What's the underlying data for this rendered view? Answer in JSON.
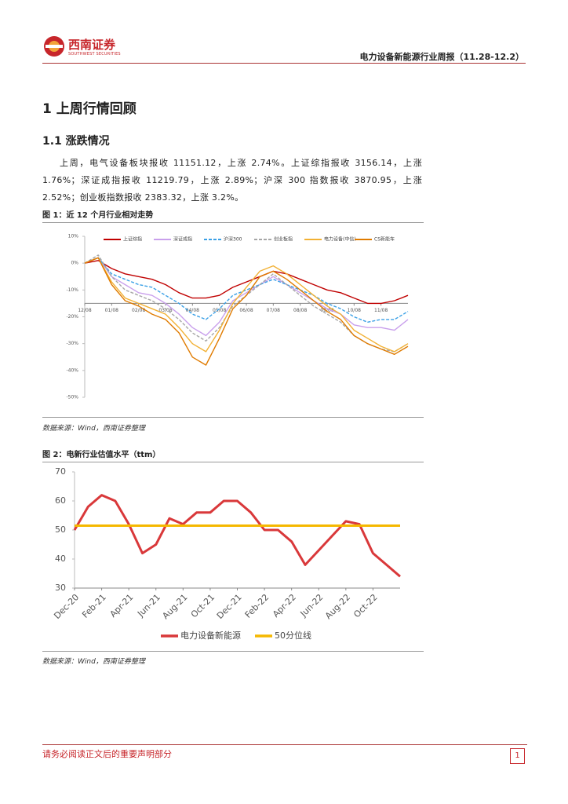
{
  "header": {
    "logo_name": "西南证券",
    "logo_en": "SOUTHWEST SECURITIES",
    "report_title": "电力设备新能源行业周报（11.28-12.2）"
  },
  "section": {
    "title": "1 上周行情回顾",
    "subtitle": "1.1 涨跌情况",
    "paragraph": "上周，电气设备板块报收 11151.12，上涨 2.74%。上证综指报收 3156.14，上涨 1.76%；深证成指报收 11219.79，上涨 2.89%；沪深 300 指数报收 3870.95，上涨 2.52%；创业板指数报收 2383.32，上涨 3.2%。"
  },
  "figures": [
    {
      "caption": "图 1：近 12 个月行业相对走势",
      "source": "数据来源：Wind，西南证券整理"
    },
    {
      "caption": "图 2：电新行业估值水平（ttm）",
      "source": "数据来源：Wind，西南证券整理"
    }
  ],
  "chart_data": [
    {
      "type": "line",
      "categories": [
        "12/08",
        null,
        "01/08",
        null,
        "02/08",
        null,
        "03/08",
        null,
        "04/08",
        null,
        "05/08",
        null,
        "06/08",
        null,
        "07/08",
        null,
        "08/08",
        null,
        "09/08",
        null,
        "10/08",
        null,
        "11/08",
        null,
        null
      ],
      "series": [
        {
          "name": "上证综指",
          "color": "#c00000",
          "style": "solid",
          "values": [
            0,
            1,
            -2,
            -4,
            -5,
            -6,
            -8,
            -11,
            -13,
            -13,
            -12,
            -9,
            -7,
            -5,
            -3,
            -4,
            -6,
            -8,
            -10,
            -11,
            -13,
            -15,
            -15,
            -14,
            -12
          ]
        },
        {
          "name": "深证成指",
          "color": "#c9a0ec",
          "style": "solid",
          "values": [
            0,
            2,
            -5,
            -8,
            -11,
            -12,
            -15,
            -19,
            -24,
            -27,
            -22,
            -14,
            -11,
            -8,
            -5,
            -8,
            -11,
            -14,
            -17,
            -19,
            -23,
            -24,
            -24,
            -25,
            -21
          ]
        },
        {
          "name": "沪深300",
          "color": "#3aa0e6",
          "style": "dashed",
          "values": [
            0,
            2,
            -4,
            -6,
            -8,
            -9,
            -12,
            -15,
            -19,
            -21,
            -17,
            -12,
            -10,
            -8,
            -6,
            -8,
            -10,
            -12,
            -15,
            -17,
            -20,
            -22,
            -21,
            -21,
            -18
          ]
        },
        {
          "name": "创业板指",
          "color": "#a6a6a6",
          "style": "dashed",
          "values": [
            0,
            3,
            -5,
            -10,
            -12,
            -14,
            -17,
            -21,
            -26,
            -29,
            -24,
            -16,
            -12,
            -8,
            -4,
            -8,
            -12,
            -16,
            -19,
            -22,
            -27,
            -30,
            -32,
            -33,
            -30
          ]
        },
        {
          "name": "电力设备(中信)",
          "color": "#f2b134",
          "style": "solid",
          "values": [
            0,
            2,
            -7,
            -13,
            -15,
            -17,
            -19,
            -24,
            -30,
            -33,
            -25,
            -15,
            -9,
            -3,
            -1,
            -4,
            -8,
            -12,
            -16,
            -19,
            -25,
            -28,
            -31,
            -33,
            -30
          ]
        },
        {
          "name": "CS新能车",
          "color": "#e07b00",
          "style": "solid",
          "values": [
            0,
            2,
            -8,
            -14,
            -16,
            -19,
            -21,
            -26,
            -35,
            -38,
            -28,
            -17,
            -12,
            -5,
            -3,
            -6,
            -10,
            -14,
            -18,
            -21,
            -27,
            -30,
            -32,
            -34,
            -31
          ]
        }
      ],
      "ylim": [
        -50,
        10
      ],
      "yticks": [
        {
          "value": 10,
          "label": "10%"
        },
        {
          "value": 0,
          "label": "0%"
        },
        {
          "value": -10,
          "label": "-10%"
        },
        {
          "value": -20,
          "label": "-20%"
        },
        {
          "value": -30,
          "label": "-30%"
        },
        {
          "value": -40,
          "label": "-40%"
        },
        {
          "value": -50,
          "label": "-50%"
        }
      ],
      "xaxis_cross": -15,
      "legend": "top"
    },
    {
      "type": "line",
      "categories": [
        "Dec-20",
        null,
        "Feb-21",
        null,
        "Apr-21",
        null,
        "Jun-21",
        null,
        "Aug-21",
        null,
        "Oct-21",
        null,
        "Dec-21",
        null,
        "Feb-22",
        null,
        "Apr-22",
        null,
        "Jun-22",
        null,
        "Aug-22",
        null,
        "Oct-22",
        null,
        null
      ],
      "series": [
        {
          "name": "电力设备新能源",
          "color": "#d9383a",
          "style": "solid",
          "values": [
            50,
            58,
            62,
            60,
            52,
            42,
            45,
            54,
            52,
            56,
            56,
            60,
            60,
            56,
            50,
            50,
            46,
            38,
            43,
            48,
            53,
            52,
            42,
            38,
            34
          ]
        },
        {
          "name": "50分位线",
          "color": "#f5b800",
          "style": "solid",
          "values": [
            51.5,
            51.5,
            51.5,
            51.5,
            51.5,
            51.5,
            51.5,
            51.5,
            51.5,
            51.5,
            51.5,
            51.5,
            51.5,
            51.5,
            51.5,
            51.5,
            51.5,
            51.5,
            51.5,
            51.5,
            51.5,
            51.5,
            51.5,
            51.5,
            51.5
          ]
        }
      ],
      "ylim": [
        30,
        70
      ],
      "yticks": [
        30,
        40,
        50,
        60,
        70
      ],
      "legend": "bottom"
    }
  ],
  "footer": {
    "disclaimer": "请务必阅读正文后的重要声明部分",
    "page": "1"
  }
}
